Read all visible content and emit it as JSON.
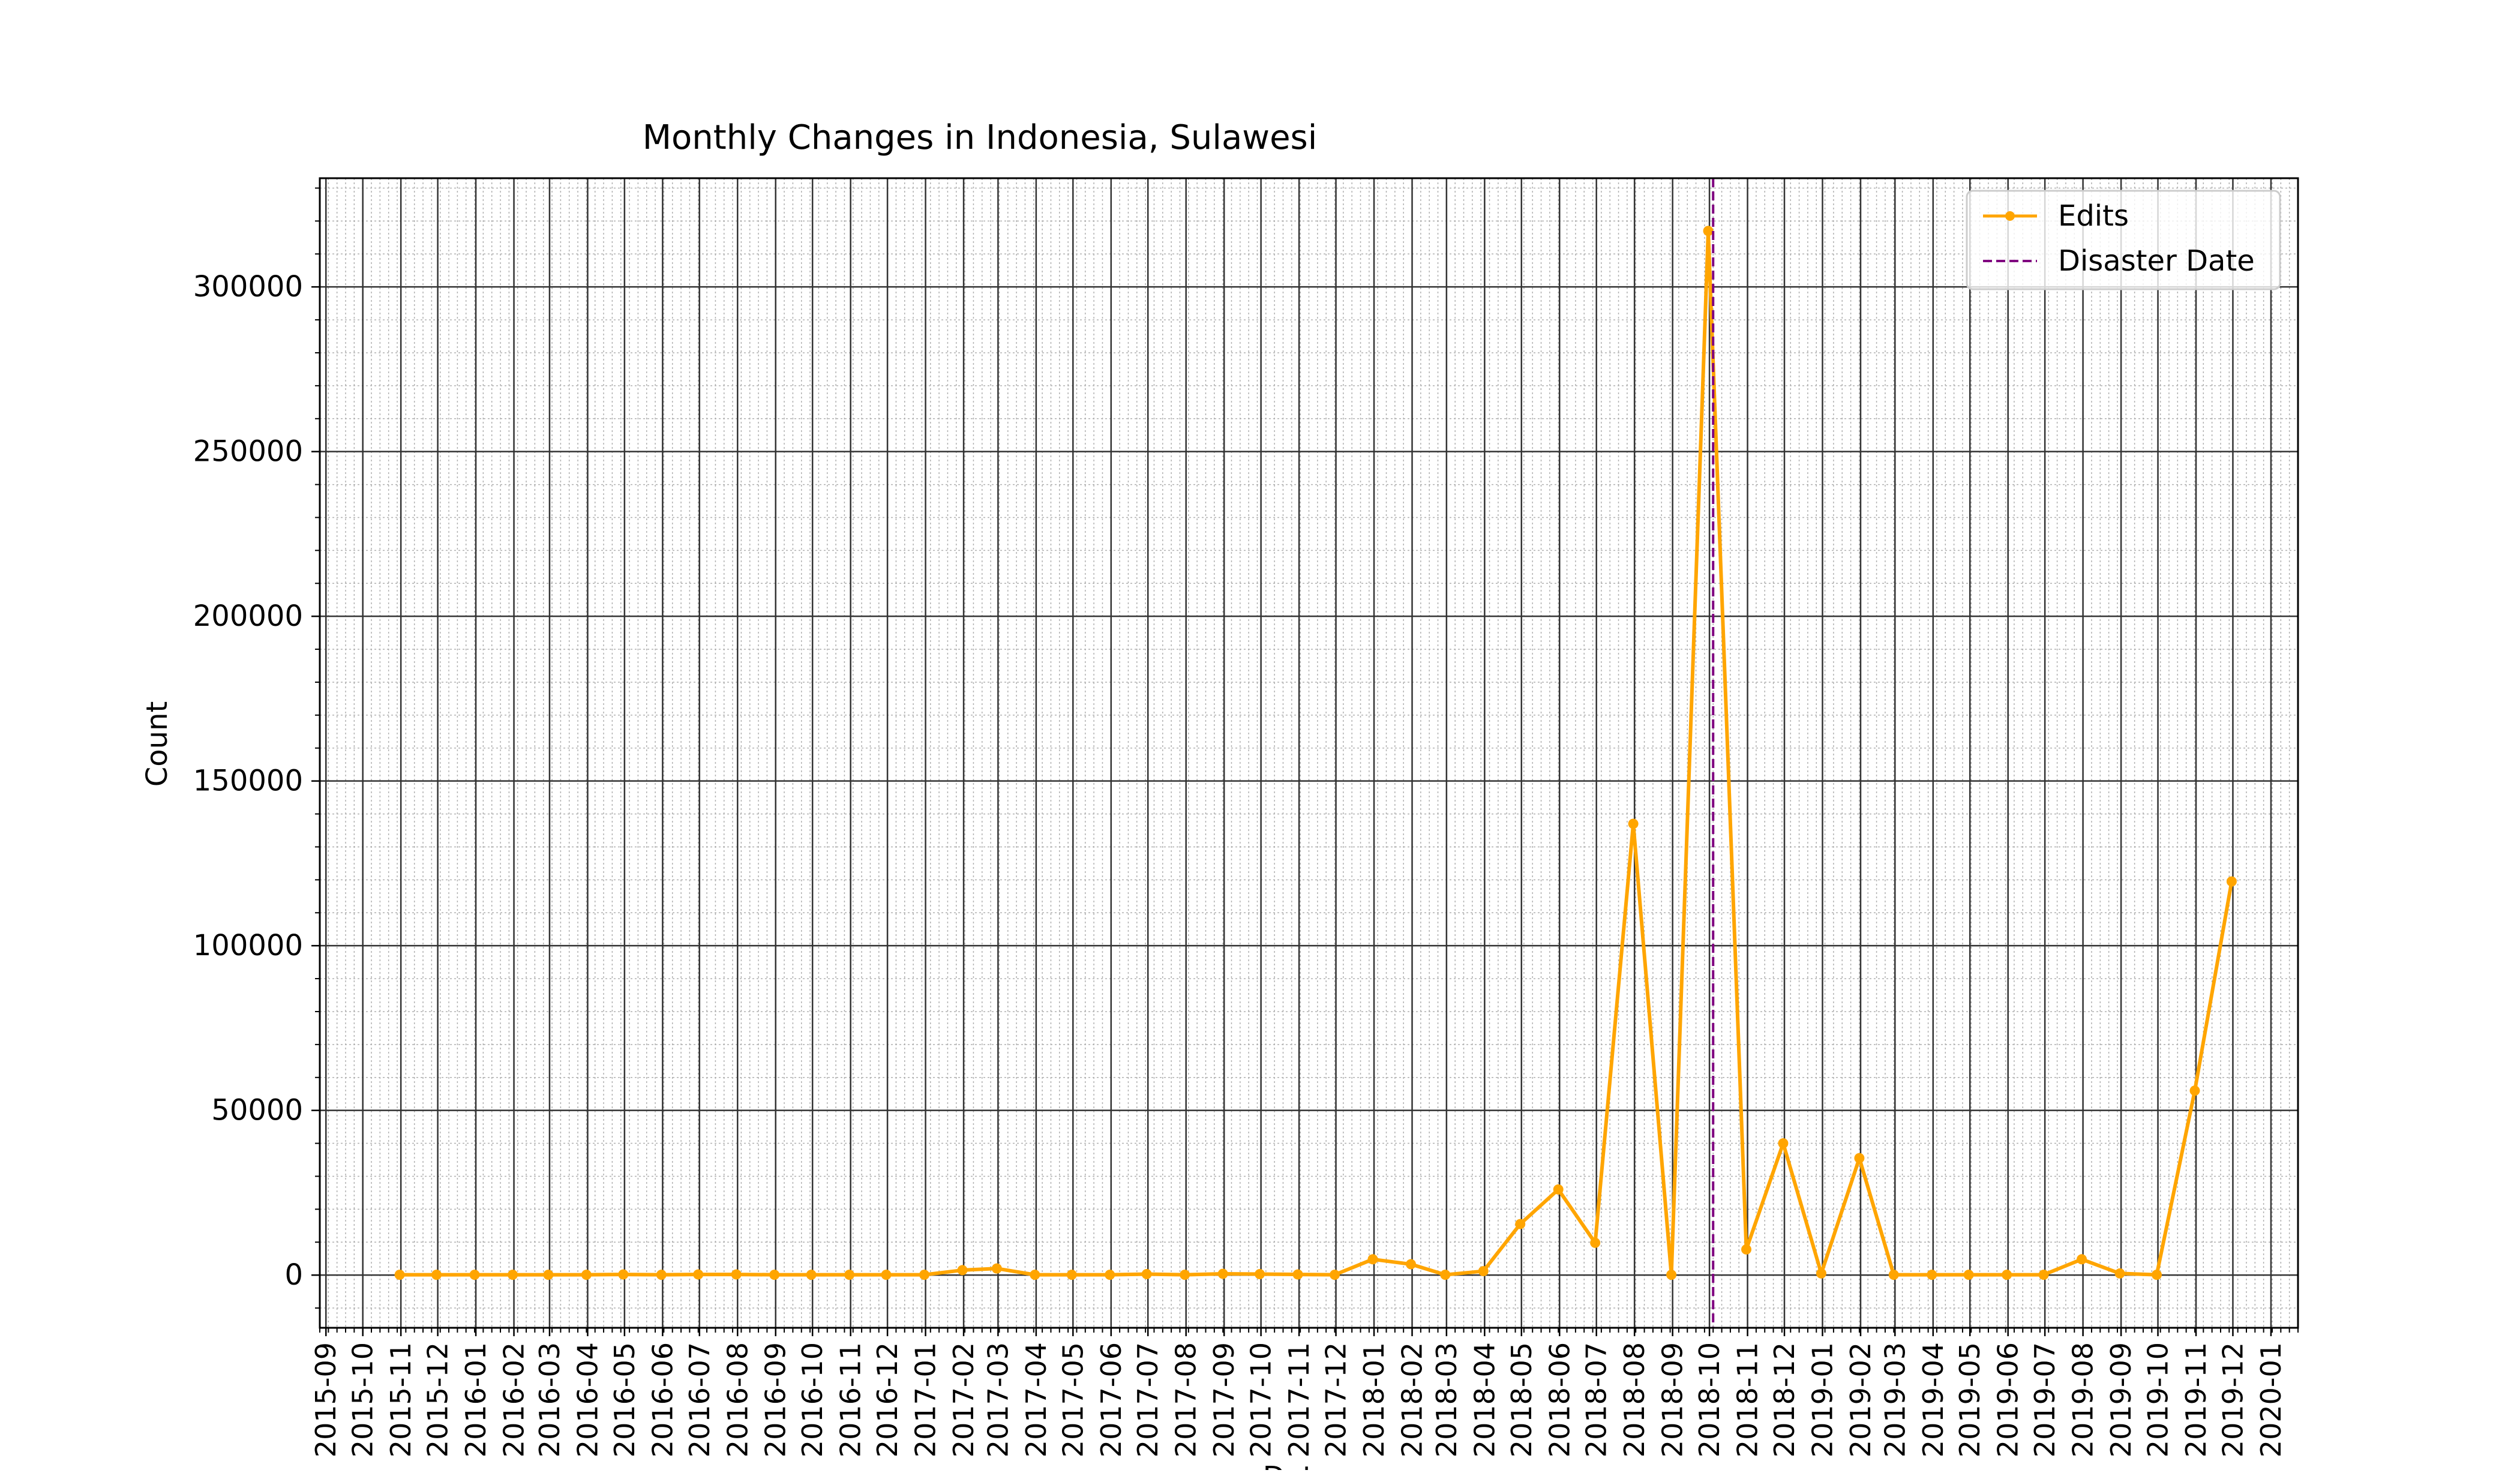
{
  "chart_data": {
    "type": "line",
    "title": "Monthly Changes in Indonesia, Sulawesi",
    "xlabel": "Date",
    "ylabel": "Count",
    "x_tick_labels": [
      "2015-09",
      "2015-10",
      "2015-11",
      "2015-12",
      "2016-01",
      "2016-02",
      "2016-03",
      "2016-04",
      "2016-05",
      "2016-06",
      "2016-07",
      "2016-08",
      "2016-09",
      "2016-10",
      "2016-11",
      "2016-12",
      "2017-01",
      "2017-02",
      "2017-03",
      "2017-04",
      "2017-05",
      "2017-06",
      "2017-07",
      "2017-08",
      "2017-09",
      "2017-10",
      "2017-11",
      "2017-12",
      "2018-01",
      "2018-02",
      "2018-03",
      "2018-04",
      "2018-05",
      "2018-06",
      "2018-07",
      "2018-08",
      "2018-09",
      "2018-10",
      "2018-11",
      "2018-12",
      "2019-01",
      "2019-02",
      "2019-03",
      "2019-04",
      "2019-05",
      "2019-06",
      "2019-07",
      "2019-08",
      "2019-09",
      "2019-10",
      "2019-11",
      "2019-12",
      "2020-01"
    ],
    "y_tick_labels": [
      "0",
      "50000",
      "100000",
      "150000",
      "200000",
      "250000",
      "300000"
    ],
    "y_ticks": [
      0,
      50000,
      100000,
      150000,
      200000,
      250000,
      300000
    ],
    "xlim": [
      "2015-08-27",
      "2020-01-23"
    ],
    "ylim": [
      -16000,
      333000
    ],
    "grid": true,
    "legend_position": "top-right",
    "series": [
      {
        "name": "Edits",
        "color": "#FFA500",
        "marker": "circle",
        "points": [
          {
            "x": "2015-10-31",
            "y": 100
          },
          {
            "x": "2015-11-30",
            "y": 100
          },
          {
            "x": "2015-12-31",
            "y": 100
          },
          {
            "x": "2016-01-31",
            "y": 100
          },
          {
            "x": "2016-02-29",
            "y": 100
          },
          {
            "x": "2016-03-31",
            "y": 100
          },
          {
            "x": "2016-04-30",
            "y": 200
          },
          {
            "x": "2016-05-31",
            "y": 100
          },
          {
            "x": "2016-06-30",
            "y": 200
          },
          {
            "x": "2016-07-31",
            "y": 200
          },
          {
            "x": "2016-08-31",
            "y": 100
          },
          {
            "x": "2016-09-30",
            "y": 100
          },
          {
            "x": "2016-10-31",
            "y": 100
          },
          {
            "x": "2016-11-30",
            "y": 100
          },
          {
            "x": "2016-12-31",
            "y": 100
          },
          {
            "x": "2017-01-31",
            "y": 1500
          },
          {
            "x": "2017-02-28",
            "y": 2000
          },
          {
            "x": "2017-03-31",
            "y": 100
          },
          {
            "x": "2017-04-30",
            "y": 100
          },
          {
            "x": "2017-05-31",
            "y": 100
          },
          {
            "x": "2017-06-30",
            "y": 300
          },
          {
            "x": "2017-07-31",
            "y": 100
          },
          {
            "x": "2017-08-31",
            "y": 400
          },
          {
            "x": "2017-09-30",
            "y": 300
          },
          {
            "x": "2017-10-31",
            "y": 200
          },
          {
            "x": "2017-11-30",
            "y": 100
          },
          {
            "x": "2017-12-31",
            "y": 4800
          },
          {
            "x": "2018-01-31",
            "y": 3300
          },
          {
            "x": "2018-02-28",
            "y": 100
          },
          {
            "x": "2018-03-31",
            "y": 1200
          },
          {
            "x": "2018-04-30",
            "y": 15500
          },
          {
            "x": "2018-05-31",
            "y": 26000
          },
          {
            "x": "2018-06-30",
            "y": 9800
          },
          {
            "x": "2018-07-31",
            "y": 137000
          },
          {
            "x": "2018-08-31",
            "y": 100
          },
          {
            "x": "2018-09-30",
            "y": 317000
          },
          {
            "x": "2018-10-31",
            "y": 7800
          },
          {
            "x": "2018-11-30",
            "y": 40000
          },
          {
            "x": "2018-12-31",
            "y": 500
          },
          {
            "x": "2019-01-31",
            "y": 35500
          },
          {
            "x": "2019-02-28",
            "y": 100
          },
          {
            "x": "2019-03-31",
            "y": 100
          },
          {
            "x": "2019-04-30",
            "y": 100
          },
          {
            "x": "2019-05-31",
            "y": 100
          },
          {
            "x": "2019-06-30",
            "y": 100
          },
          {
            "x": "2019-07-31",
            "y": 4800
          },
          {
            "x": "2019-08-31",
            "y": 500
          },
          {
            "x": "2019-09-30",
            "y": 100
          },
          {
            "x": "2019-10-31",
            "y": 56000
          },
          {
            "x": "2019-11-30",
            "y": 119500
          }
        ]
      }
    ],
    "vertical_lines": [
      {
        "name": "Disaster Date",
        "x": "2018-10-04",
        "color": "#800080",
        "style": "dashed"
      }
    ]
  }
}
